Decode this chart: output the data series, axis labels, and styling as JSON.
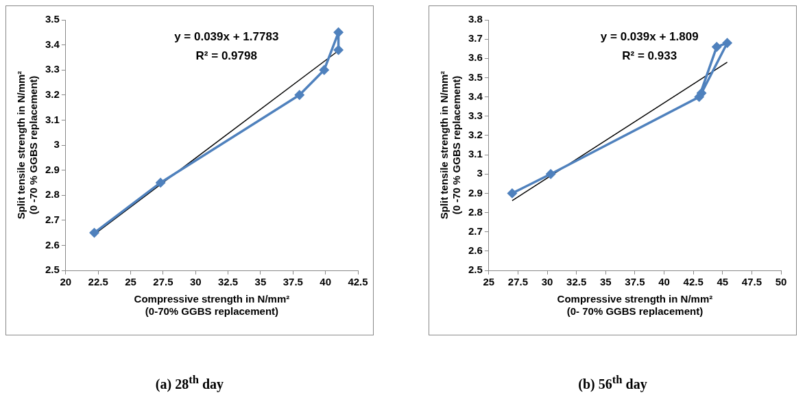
{
  "chart_data": [
    {
      "type": "line",
      "title": "(a) 28$^{th}$ day",
      "xlabel": "Compressive strength in N/mm²\n(0-70% GGBS replacement)",
      "ylabel": "Split tensile strength in N/mm²\n(0 -70 % GGBS replacement)",
      "annotations": [
        "y = 0.039x + 1.7783\nR² = 0.9798"
      ],
      "xlim": [
        20,
        42.5
      ],
      "xticks": [
        20,
        22.5,
        25,
        27.5,
        30,
        32.5,
        35,
        37.5,
        40,
        42.5
      ],
      "ylim": [
        2.5,
        3.5
      ],
      "yticks": [
        2.5,
        2.6,
        2.7,
        2.8,
        2.9,
        3,
        3.1,
        3.2,
        3.3,
        3.4,
        3.5
      ],
      "grid": false,
      "legend": false,
      "series": [
        {
          "color": "#4f81bd",
          "marker": "diamond",
          "x": [
            22.2,
            27.3,
            38,
            39.9,
            41,
            41
          ],
          "values": [
            2.65,
            2.85,
            3.2,
            3.3,
            3.45,
            3.38
          ]
        },
        {
          "color": "#000000",
          "marker": "none",
          "x": [
            22.2,
            41
          ],
          "values": [
            2.644,
            3.377
          ]
        }
      ]
    },
    {
      "type": "line",
      "title": "(b) 56$^{th}$ day",
      "xlabel": "Compressive strength in N/mm²\n(0- 70% GGBS replacement)",
      "ylabel": "Split tensile strength in N/mm²\n(0 -70 % GGBS replacement)",
      "annotations": [
        "y = 0.039x + 1.809\nR² = 0.933"
      ],
      "xlim": [
        25,
        50
      ],
      "xticks": [
        25,
        27.5,
        30,
        32.5,
        35,
        37.5,
        40,
        42.5,
        45,
        47.5,
        50
      ],
      "ylim": [
        2.5,
        3.8
      ],
      "yticks": [
        2.5,
        2.6,
        2.7,
        2.8,
        2.9,
        3,
        3.1,
        3.2,
        3.3,
        3.4,
        3.5,
        3.6,
        3.7,
        3.8
      ],
      "grid": false,
      "legend": false,
      "series": [
        {
          "color": "#4f81bd",
          "marker": "diamond",
          "x": [
            27,
            30.3,
            43,
            44.5,
            45.4,
            43.2
          ],
          "values": [
            2.9,
            3.0,
            3.4,
            3.66,
            3.68,
            3.42
          ]
        },
        {
          "color": "#000000",
          "marker": "none",
          "x": [
            27,
            45.4
          ],
          "values": [
            2.862,
            3.58
          ]
        }
      ]
    }
  ]
}
